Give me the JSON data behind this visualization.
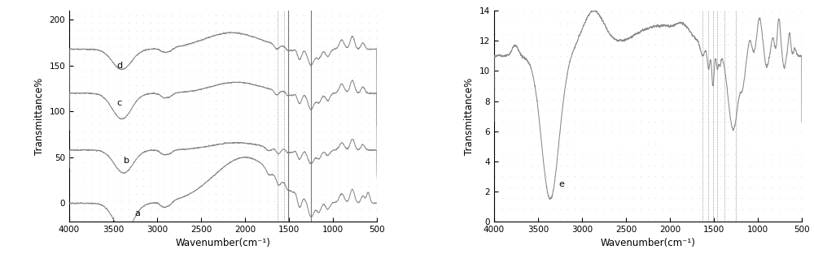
{
  "plot1": {
    "ylabel": "Transmittance%",
    "xlabel": "Wavenumber(cm⁻¹)",
    "ylim": [
      -20,
      210
    ],
    "xlim_left": 4000,
    "xlim_right": 500,
    "yticks": [
      0,
      50,
      100,
      150,
      200
    ],
    "xticks": [
      4000,
      3500,
      3000,
      2500,
      2000,
      1500,
      1000,
      500
    ],
    "vlines_dotted": [
      1630,
      1560
    ],
    "vlines_solid": [
      1510,
      1250
    ],
    "labels": [
      "a",
      "b",
      "c",
      "d"
    ],
    "offsets": [
      0,
      55,
      110,
      160
    ],
    "baselines": [
      0,
      58,
      120,
      168
    ],
    "color": "#888888"
  },
  "plot2": {
    "ylabel": "Transmittance%",
    "xlabel": "Wavenumber(cm⁻¹)",
    "ylim_bottom": 0,
    "ylim_top": 14,
    "xlim_left": 4000,
    "xlim_right": 500,
    "yticks": [
      0,
      2,
      4,
      6,
      8,
      10,
      12,
      14
    ],
    "xticks": [
      4000,
      3500,
      3000,
      2500,
      2000,
      1500,
      1000,
      500
    ],
    "vlines": [
      1630,
      1560,
      1510,
      1460,
      1380,
      1250
    ],
    "label": "e",
    "color": "#888888"
  },
  "fig_width": 10.0,
  "fig_height": 3.29,
  "dpi": 100,
  "dot_color": "#c8c8c8",
  "bg_color": "white"
}
